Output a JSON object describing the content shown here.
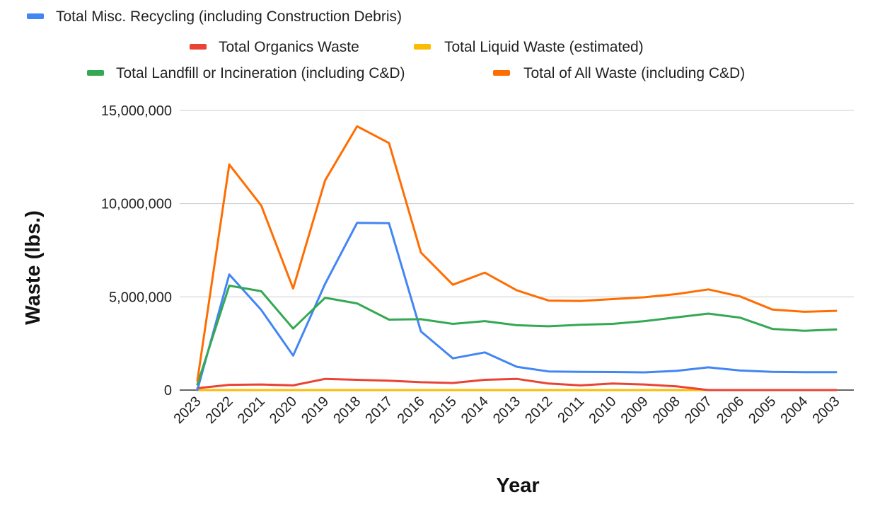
{
  "chart_data": {
    "type": "line",
    "title": "",
    "xlabel": "Year",
    "ylabel": "Waste (lbs.)",
    "ylim": [
      0,
      15000000
    ],
    "yticks": [
      0,
      5000000,
      10000000,
      15000000
    ],
    "ytick_labels": [
      "0",
      "5,000,000",
      "10,000,000",
      "15,000,000"
    ],
    "grid": true,
    "legend_position": "top",
    "categories": [
      "2023",
      "2022",
      "2021",
      "2020",
      "2019",
      "2018",
      "2017",
      "2016",
      "2015",
      "2014",
      "2013",
      "2012",
      "2011",
      "2010",
      "2009",
      "2008",
      "2007",
      "2006",
      "2005",
      "2004",
      "2003"
    ],
    "series": [
      {
        "name": "Total Misc. Recycling (including Construction Debris)",
        "color": "#4285f4",
        "values": [
          0,
          6200000,
          4300000,
          1850000,
          5700000,
          8970000,
          8950000,
          3150000,
          1700000,
          2020000,
          1250000,
          1000000,
          980000,
          970000,
          950000,
          1030000,
          1220000,
          1050000,
          980000,
          960000,
          960000
        ]
      },
      {
        "name": "Total Organics Waste",
        "color": "#ea4335",
        "values": [
          100000,
          280000,
          300000,
          250000,
          600000,
          550000,
          500000,
          420000,
          380000,
          550000,
          600000,
          350000,
          250000,
          350000,
          300000,
          200000,
          0,
          0,
          0,
          0,
          0
        ]
      },
      {
        "name": "Total Liquid Waste (estimated)",
        "color": "#fbbc04",
        "values": [
          0,
          0,
          0,
          0,
          0,
          0,
          0,
          0,
          0,
          0,
          0,
          0,
          0,
          0,
          0,
          0,
          0,
          0,
          0,
          0,
          0
        ]
      },
      {
        "name": "Total Landfill or Incineration (including C&D)",
        "color": "#34a853",
        "values": [
          300000,
          5600000,
          5300000,
          3300000,
          4950000,
          4650000,
          3780000,
          3800000,
          3550000,
          3700000,
          3480000,
          3420000,
          3500000,
          3550000,
          3700000,
          3900000,
          4100000,
          3880000,
          3280000,
          3180000,
          3250000
        ]
      },
      {
        "name": "Total of All Waste (including C&D)",
        "color": "#ff6d01",
        "values": [
          500000,
          12100000,
          9900000,
          5450000,
          11250000,
          14150000,
          13250000,
          7380000,
          5650000,
          6300000,
          5350000,
          4800000,
          4780000,
          4880000,
          4980000,
          5150000,
          5400000,
          5020000,
          4320000,
          4200000,
          4250000
        ]
      }
    ]
  }
}
